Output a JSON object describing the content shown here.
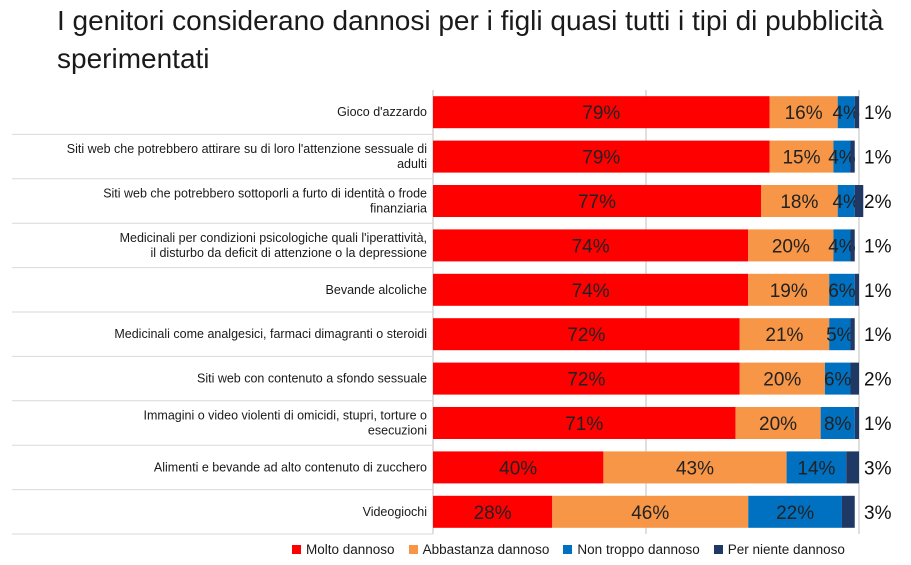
{
  "title": "I genitori considerano dannosi per i figli quasi tutti i tipi di pubblicità sperimentati",
  "chart_data": {
    "type": "bar",
    "orientation": "horizontal",
    "stacked": true,
    "title": "I genitori considerano dannosi per i figli quasi tutti i tipi di pubblicità sperimentati",
    "xlim": [
      0,
      100
    ],
    "grid": true,
    "legend_position": "bottom",
    "categories": [
      "Gioco d'azzardo",
      "Siti web che potrebbero attirare su di loro l'attenzione sessuale di adulti",
      "Siti web che potrebbero sottoporli a furto di identità o frode finanziaria",
      "Medicinali per condizioni psicologiche quali l'iperattività, il disturbo da deficit di attenzione o la depressione",
      "Bevande alcoliche",
      "Medicinali come analgesici, farmaci dimagranti o steroidi",
      "Siti web con contenuto a sfondo sessuale",
      "Immagini o video violenti di omicidi, stupri, torture o esecuzioni",
      "Alimenti e bevande ad alto contenuto di zucchero",
      "Videogiochi"
    ],
    "category_lines": [
      [
        "Gioco d'azzardo"
      ],
      [
        "Siti web che potrebbero attirare su di loro l'attenzione sessuale di",
        "adulti"
      ],
      [
        "Siti web che potrebbero sottoporli a furto di identità o frode",
        "finanziaria"
      ],
      [
        "Medicinali per condizioni psicologiche quali l'iperattività,",
        "il disturbo da deficit di attenzione o la depressione"
      ],
      [
        "Bevande alcoliche"
      ],
      [
        "Medicinali come analgesici, farmaci dimagranti o steroidi"
      ],
      [
        "Siti web con contenuto a sfondo sessuale"
      ],
      [
        "Immagini o video violenti di omicidi, stupri, torture o",
        "esecuzioni"
      ],
      [
        "Alimenti e bevande ad alto contenuto di zucchero"
      ],
      [
        "Videogiochi"
      ]
    ],
    "series": [
      {
        "name": "Molto dannoso",
        "color": "#ff0000",
        "values": [
          79,
          79,
          77,
          74,
          74,
          72,
          72,
          71,
          40,
          28
        ]
      },
      {
        "name": "Abbastanza dannoso",
        "color": "#f79646",
        "values": [
          16,
          15,
          18,
          20,
          19,
          21,
          20,
          20,
          43,
          46
        ]
      },
      {
        "name": "Non troppo dannoso",
        "color": "#0070c0",
        "values": [
          4,
          4,
          4,
          4,
          6,
          5,
          6,
          8,
          14,
          22
        ]
      },
      {
        "name": "Per niente dannoso",
        "color": "#1f3864",
        "values": [
          1,
          1,
          2,
          1,
          1,
          1,
          2,
          1,
          3,
          3
        ]
      }
    ],
    "gridline_color": "#bfbfbf"
  }
}
